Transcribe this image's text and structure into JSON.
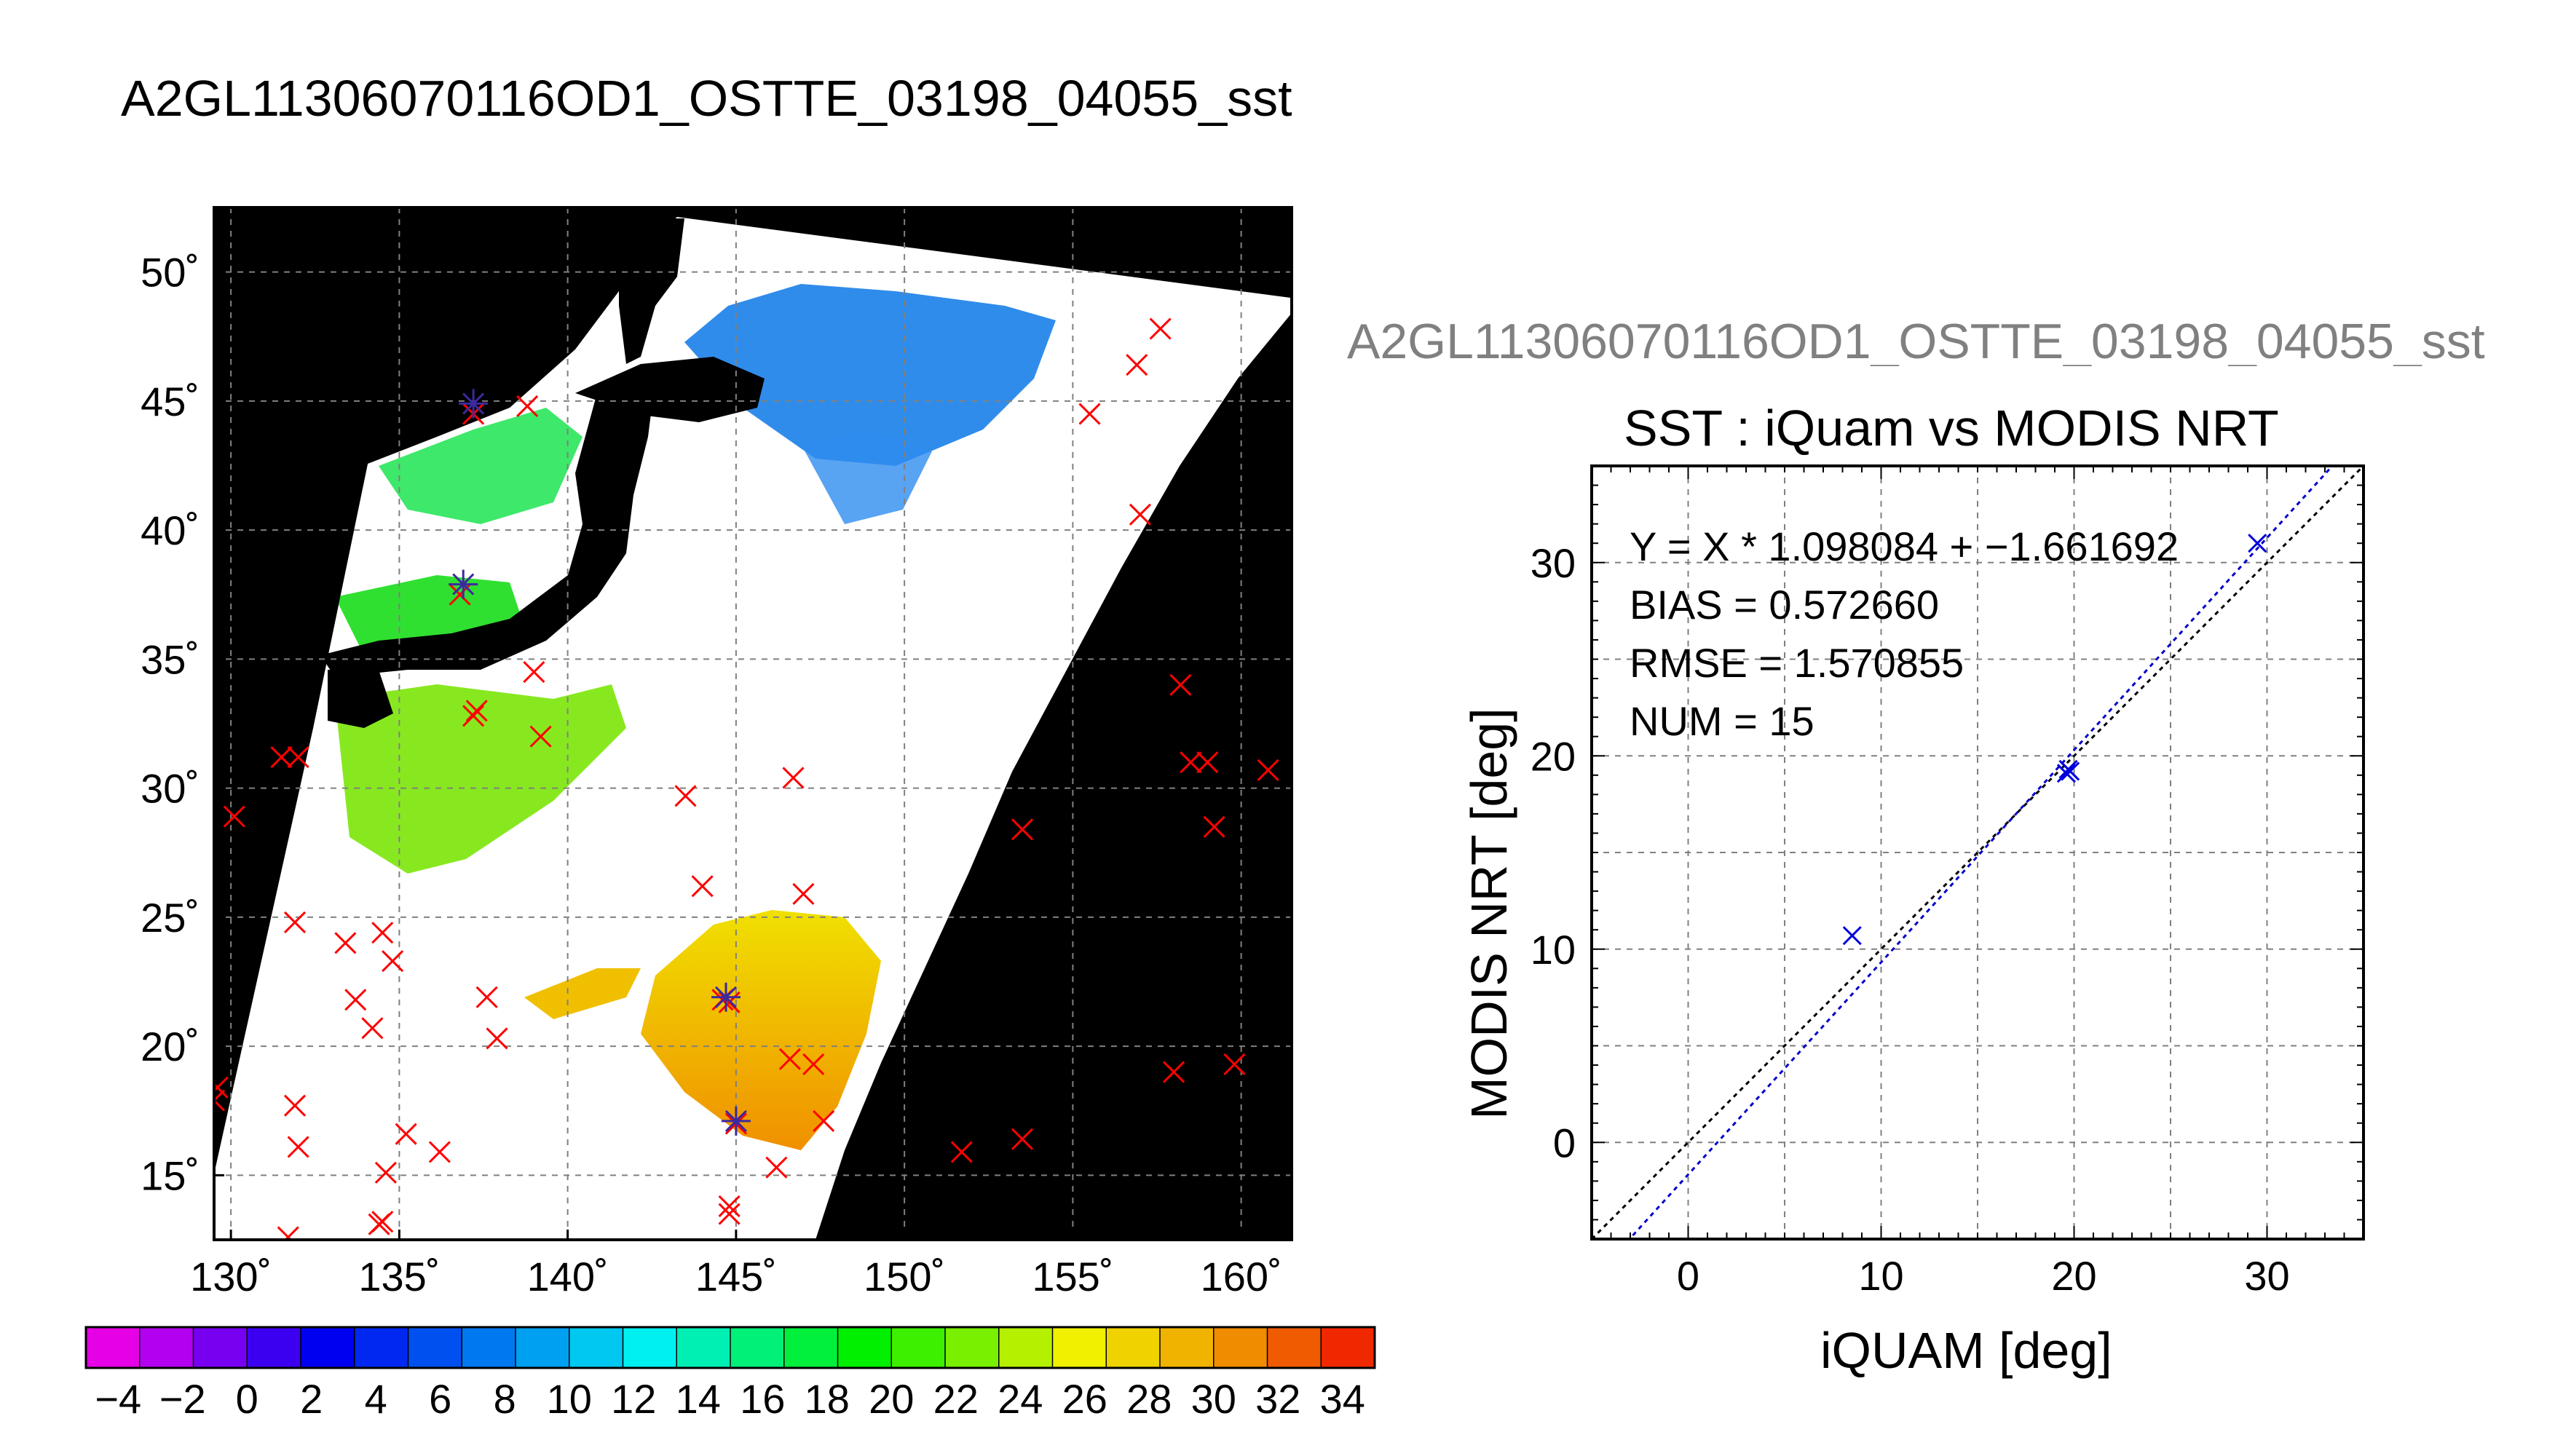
{
  "main_title": "A2GL11306070116OD1_OSTTE_03198_04055_sst",
  "scatter_subtitle": "A2GL11306070116OD1_OSTTE_03198_04055_sst",
  "chart_data": [
    {
      "type": "map",
      "lon_ticks": [
        130,
        135,
        140,
        145,
        150,
        155,
        160
      ],
      "lat_ticks": [
        15,
        20,
        25,
        30,
        35,
        40,
        45,
        50
      ],
      "lon_tick_labels": [
        "130˚",
        "135˚",
        "140˚",
        "145˚",
        "150˚",
        "155˚",
        "160˚"
      ],
      "lat_tick_labels": [
        "15˚",
        "20˚",
        "25˚",
        "30˚",
        "35˚",
        "40˚",
        "45˚",
        "50˚"
      ],
      "lon_range": [
        129.5,
        161.5
      ],
      "lat_range": [
        12.5,
        52.5
      ],
      "grid": true,
      "in_situ_points_lonlat": [
        [
          137.2,
          44.5
        ],
        [
          138.8,
          44.8
        ],
        [
          136.8,
          37.5
        ],
        [
          139.0,
          34.5
        ],
        [
          139.2,
          32.0
        ],
        [
          137.2,
          32.8
        ],
        [
          137.3,
          33.0
        ],
        [
          131.5,
          31.2
        ],
        [
          132.0,
          31.2
        ],
        [
          130.1,
          28.9
        ],
        [
          143.5,
          29.7
        ],
        [
          146.7,
          30.4
        ],
        [
          144.0,
          26.2
        ],
        [
          147.0,
          25.9
        ],
        [
          131.9,
          24.8
        ],
        [
          133.4,
          24.0
        ],
        [
          134.5,
          24.4
        ],
        [
          134.8,
          23.3
        ],
        [
          133.7,
          21.8
        ],
        [
          134.2,
          20.7
        ],
        [
          137.6,
          21.9
        ],
        [
          137.9,
          20.3
        ],
        [
          144.6,
          21.8
        ],
        [
          144.8,
          21.7
        ],
        [
          146.6,
          19.5
        ],
        [
          147.3,
          19.3
        ],
        [
          147.6,
          17.1
        ],
        [
          145.0,
          17.0
        ],
        [
          146.2,
          15.3
        ],
        [
          144.8,
          13.8
        ],
        [
          144.8,
          13.5
        ],
        [
          131.9,
          17.7
        ],
        [
          132.0,
          16.1
        ],
        [
          135.2,
          16.6
        ],
        [
          136.2,
          15.9
        ],
        [
          134.6,
          15.1
        ],
        [
          134.5,
          13.2
        ],
        [
          134.4,
          13.1
        ],
        [
          131.7,
          12.6
        ],
        [
          129.6,
          18.4
        ],
        [
          129.5,
          17.9
        ],
        [
          151.7,
          15.9
        ],
        [
          153.5,
          16.4
        ],
        [
          153.5,
          28.4
        ],
        [
          158.2,
          34.0
        ],
        [
          158.5,
          31.0
        ],
        [
          159.0,
          31.0
        ],
        [
          159.2,
          28.5
        ],
        [
          160.8,
          30.7
        ],
        [
          158.0,
          19.0
        ],
        [
          159.8,
          19.3
        ],
        [
          155.5,
          44.5
        ],
        [
          156.9,
          46.4
        ],
        [
          157.6,
          47.8
        ],
        [
          157.0,
          40.6
        ]
      ],
      "matched_points_lonlat": [
        [
          137.2,
          44.9
        ],
        [
          136.9,
          37.9
        ],
        [
          144.7,
          21.9
        ],
        [
          145.0,
          17.1
        ]
      ]
    },
    {
      "type": "scatter",
      "title": "SST : iQuam vs MODIS NRT",
      "xlabel": "iQUAM [deg]",
      "ylabel": "MODIS NRT [deg]",
      "xlim": [
        -5,
        35
      ],
      "ylim": [
        -5,
        35
      ],
      "x_ticks": [
        0,
        10,
        20,
        30
      ],
      "y_ticks": [
        0,
        10,
        20,
        30
      ],
      "grid": true,
      "points": [
        {
          "x": 8.5,
          "y": 10.7
        },
        {
          "x": 19.6,
          "y": 19.1
        },
        {
          "x": 19.7,
          "y": 19.3
        },
        {
          "x": 19.8,
          "y": 19.2
        },
        {
          "x": 29.5,
          "y": 31.0
        }
      ],
      "fit": {
        "slope": 1.098084,
        "intercept": -1.661692
      },
      "stats": {
        "equation": "Y = X * 1.098084 + −1.661692",
        "bias": "BIAS = 0.572660",
        "rmse": "RMSE = 1.570855",
        "num": "NUM = 15"
      }
    },
    {
      "type": "colorbar",
      "min": -5,
      "max": 35,
      "step": 2,
      "tick_labels": [
        "−4",
        "−2",
        "0",
        "2",
        "4",
        "6",
        "8",
        "10",
        "12",
        "14",
        "16",
        "18",
        "20",
        "22",
        "24",
        "26",
        "28",
        "30",
        "32",
        "34"
      ],
      "colors": [
        "#e600e6",
        "#b400f0",
        "#7800f0",
        "#3c00f0",
        "#0000f0",
        "#0028f0",
        "#0050f0",
        "#0078f0",
        "#00a0f0",
        "#00c8f0",
        "#00f0f0",
        "#00f0b4",
        "#00f078",
        "#00f03c",
        "#00f000",
        "#3cf000",
        "#78f000",
        "#b4f000",
        "#f0f000",
        "#f0d200",
        "#f0b400",
        "#f08c00",
        "#f05a00",
        "#f02800"
      ]
    }
  ],
  "colors": {
    "land": "#000000",
    "in_situ_marker": "#ff0000",
    "matched_marker": "#3b2aa0",
    "scatter_point": "#0000dd",
    "fit_line": "#0000cc",
    "one_to_one_line": "#000000",
    "grid": "#808080"
  }
}
